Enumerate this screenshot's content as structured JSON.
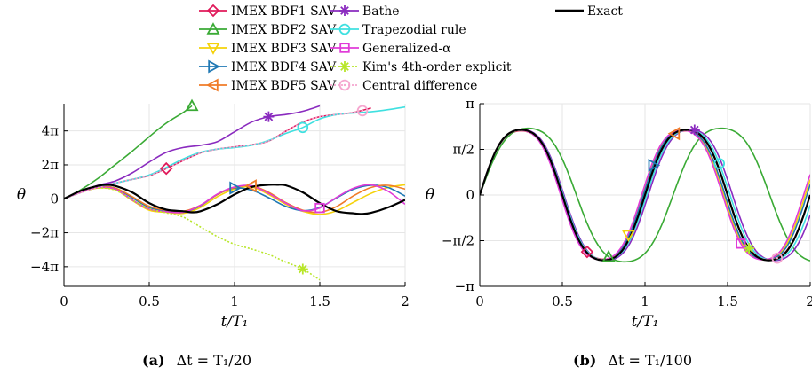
{
  "legend": {
    "items": [
      {
        "label": "IMEX BDF1 SAV",
        "color": "#e0195a",
        "marker": "diamond",
        "dash": "solid"
      },
      {
        "label": "IMEX BDF2 SAV",
        "color": "#3aaa35",
        "marker": "triangle-up",
        "dash": "solid"
      },
      {
        "label": "IMEX BDF3 SAV",
        "color": "#f5d20a",
        "marker": "triangle-down",
        "dash": "solid"
      },
      {
        "label": "IMEX BDF4 SAV",
        "color": "#1f78b4",
        "marker": "triangle-right",
        "dash": "solid"
      },
      {
        "label": "IMEX BDF5 SAV",
        "color": "#f07c28",
        "marker": "triangle-left",
        "dash": "solid"
      },
      {
        "label": "Bathe",
        "color": "#8a2bbf",
        "marker": "asterisk",
        "dash": "solid"
      },
      {
        "label": "Trapezodial rule",
        "color": "#3fe0e0",
        "marker": "circle",
        "dash": "solid"
      },
      {
        "label": "Generalized-α",
        "color": "#e03bd8",
        "marker": "square",
        "dash": "solid"
      },
      {
        "label": "Kim's 4th-order explicit",
        "color": "#b8e62a",
        "marker": "asterisk",
        "dash": "dotted"
      },
      {
        "label": "Central difference",
        "color": "#f5a6cf",
        "marker": "circle-dot",
        "dash": "dotted"
      },
      {
        "label": "Exact",
        "color": "#000000",
        "marker": "none",
        "dash": "solid"
      }
    ]
  },
  "chart_data": [
    {
      "type": "line",
      "caption_label": "(a)",
      "caption_text": "Δt = T₁/20",
      "xlabel": "t/T₁",
      "ylabel": "θ",
      "xlim": [
        0,
        2
      ],
      "ylim": [
        -16.2,
        17.6
      ],
      "xticks": [
        {
          "v": 0,
          "l": "0"
        },
        {
          "v": 0.5,
          "l": "0.5"
        },
        {
          "v": 1,
          "l": "1"
        },
        {
          "v": 1.5,
          "l": "1.5"
        },
        {
          "v": 2,
          "l": "2"
        }
      ],
      "yticks": [
        {
          "v": -12.566,
          "l": "−4π"
        },
        {
          "v": -6.283,
          "l": "−2π"
        },
        {
          "v": 0,
          "l": "0"
        },
        {
          "v": 6.283,
          "l": "2π"
        },
        {
          "v": 12.566,
          "l": "4π"
        }
      ],
      "grid": true,
      "series": [
        {
          "name": "IMEX BDF1 SAV",
          "marker_at": [
            0.6
          ],
          "x": [
            0,
            0.1,
            0.2,
            0.3,
            0.4,
            0.5,
            0.6,
            0.7,
            0.8,
            0.9,
            1.0,
            1.1,
            1.2,
            1.3,
            1.4,
            1.5,
            1.6,
            1.7,
            1.8
          ],
          "y": [
            0,
            1.2,
            2.2,
            2.9,
            3.6,
            4.3,
            5.6,
            7.1,
            8.5,
            9.2,
            9.6,
            10.0,
            10.7,
            12.5,
            14.2,
            15.2,
            15.6,
            16.0,
            16.8
          ]
        },
        {
          "name": "IMEX BDF2 SAV",
          "marker_at": [
            0.75
          ],
          "x": [
            0,
            0.1,
            0.2,
            0.3,
            0.4,
            0.5,
            0.6,
            0.7,
            0.75
          ],
          "y": [
            0,
            1.7,
            3.8,
            6.3,
            8.8,
            11.5,
            14.0,
            16.0,
            17.2
          ]
        },
        {
          "name": "IMEX BDF3 SAV",
          "marker_at": [],
          "x": [
            0,
            0.1,
            0.2,
            0.3,
            0.4,
            0.5,
            0.6,
            0.7,
            0.8,
            0.9,
            1.0,
            1.1,
            1.2,
            1.3,
            1.4,
            1.5,
            1.6,
            1.7,
            1.8,
            1.9,
            2.0
          ],
          "y": [
            0,
            1.2,
            2.0,
            1.7,
            -0.3,
            -2.1,
            -2.5,
            -2.7,
            -1.6,
            0.4,
            1.8,
            2.2,
            0.8,
            -1.0,
            -2.3,
            -2.9,
            -2.2,
            -0.6,
            1.0,
            2.1,
            2.6
          ]
        },
        {
          "name": "IMEX BDF4 SAV",
          "marker_at": [
            1.0
          ],
          "x": [
            0,
            0.1,
            0.2,
            0.3,
            0.4,
            0.5,
            0.6,
            0.7,
            0.8,
            0.9,
            1.0,
            1.1,
            1.2,
            1.3,
            1.4,
            1.5,
            1.6,
            1.7,
            1.8,
            1.9,
            2.0
          ],
          "y": [
            0,
            1.3,
            2.2,
            2.0,
            0.2,
            -1.6,
            -2.3,
            -2.5,
            -1.3,
            0.8,
            2.0,
            1.6,
            0.2,
            -1.4,
            -2.2,
            -1.6,
            0.2,
            1.8,
            2.5,
            2.1,
            0.5
          ]
        },
        {
          "name": "IMEX BDF5 SAV",
          "marker_at": [
            1.1
          ],
          "x": [
            0,
            0.1,
            0.2,
            0.3,
            0.4,
            0.5,
            0.6,
            0.7,
            0.8,
            0.9,
            1.0,
            1.1,
            1.2,
            1.3,
            1.4,
            1.5,
            1.6,
            1.7,
            1.8,
            1.9,
            2.0
          ],
          "y": [
            0,
            1.3,
            2.2,
            2.0,
            0.4,
            -1.4,
            -2.1,
            -2.3,
            -1.2,
            0.8,
            2.1,
            2.4,
            1.2,
            -0.7,
            -2.1,
            -2.5,
            -1.4,
            0.6,
            2.1,
            2.5,
            1.8
          ]
        },
        {
          "name": "Bathe",
          "marker_at": [
            1.2
          ],
          "x": [
            0,
            0.1,
            0.2,
            0.3,
            0.4,
            0.5,
            0.6,
            0.7,
            0.8,
            0.9,
            1.0,
            1.1,
            1.2,
            1.3,
            1.4,
            1.5
          ],
          "y": [
            0,
            1.4,
            2.5,
            3.3,
            4.8,
            6.8,
            8.6,
            9.5,
            9.9,
            10.6,
            12.4,
            14.2,
            15.2,
            15.6,
            16.2,
            17.2
          ]
        },
        {
          "name": "Trapezodial rule",
          "marker_at": [
            1.4
          ],
          "x": [
            0,
            0.1,
            0.2,
            0.3,
            0.4,
            0.5,
            0.6,
            0.7,
            0.8,
            0.9,
            1.0,
            1.1,
            1.2,
            1.3,
            1.4,
            1.5,
            1.6,
            1.7,
            1.8,
            1.9,
            2.0
          ],
          "y": [
            0,
            1.2,
            2.2,
            2.9,
            3.6,
            4.4,
            5.8,
            7.4,
            8.6,
            9.2,
            9.5,
            9.9,
            10.8,
            12.1,
            13.2,
            14.8,
            15.6,
            15.9,
            16.1,
            16.5,
            17.0
          ]
        },
        {
          "name": "Generalized-α",
          "marker_at": [
            1.5
          ],
          "x": [
            0,
            0.1,
            0.2,
            0.3,
            0.4,
            0.5,
            0.6,
            0.7,
            0.8,
            0.9,
            1.0,
            1.1,
            1.2,
            1.3,
            1.4,
            1.5,
            1.6,
            1.7,
            1.8,
            1.9,
            2.0
          ],
          "y": [
            0,
            1.2,
            2.1,
            1.8,
            -0.2,
            -1.9,
            -2.4,
            -2.5,
            -1.2,
            0.9,
            2.2,
            2.4,
            1.0,
            -0.8,
            -2.2,
            -1.7,
            0.3,
            2.0,
            2.6,
            1.4,
            -1.0
          ]
        },
        {
          "name": "Kim's 4th-order explicit",
          "marker_at": [
            1.4
          ],
          "x": [
            0,
            0.1,
            0.2,
            0.3,
            0.4,
            0.5,
            0.6,
            0.7,
            0.8,
            0.9,
            1.0,
            1.1,
            1.2,
            1.3,
            1.4,
            1.5
          ],
          "y": [
            0,
            1.2,
            2.0,
            1.6,
            -0.2,
            -1.8,
            -2.6,
            -3.4,
            -5.2,
            -7.0,
            -8.4,
            -9.3,
            -10.3,
            -11.7,
            -13.0,
            -15.0
          ]
        },
        {
          "name": "Central difference",
          "marker_at": [
            1.75
          ],
          "x": [
            0,
            0.1,
            0.2,
            0.3,
            0.4,
            0.5,
            0.6,
            0.7,
            0.8,
            0.9,
            1.0,
            1.1,
            1.2,
            1.3,
            1.4,
            1.5,
            1.6,
            1.7,
            1.75
          ],
          "y": [
            0,
            1.2,
            2.2,
            2.9,
            3.6,
            4.3,
            5.6,
            7.1,
            8.5,
            9.2,
            9.6,
            10.0,
            10.7,
            12.5,
            14.2,
            15.2,
            15.6,
            16.0,
            16.3
          ]
        },
        {
          "name": "Exact",
          "marker_at": [],
          "x": [
            0,
            0.1,
            0.2,
            0.25,
            0.3,
            0.4,
            0.5,
            0.6,
            0.7,
            0.75,
            0.8,
            0.9,
            1.0,
            1.1,
            1.2,
            1.25,
            1.3,
            1.4,
            1.5,
            1.6,
            1.7,
            1.75,
            1.8,
            1.9,
            2.0
          ],
          "y": [
            0,
            1.5,
            2.4,
            2.6,
            2.4,
            1.2,
            -0.8,
            -2.0,
            -2.3,
            -2.5,
            -2.3,
            -1.0,
            0.8,
            2.2,
            2.6,
            2.6,
            2.5,
            1.2,
            -0.8,
            -2.3,
            -2.7,
            -2.8,
            -2.6,
            -1.6,
            -0.2
          ]
        }
      ]
    },
    {
      "type": "line",
      "caption_label": "(b)",
      "caption_text": "Δt = T₁/100",
      "xlabel": "t/T₁",
      "ylabel": "θ",
      "xlim": [
        0,
        2
      ],
      "ylim": [
        -3.1416,
        3.1416
      ],
      "xticks": [
        {
          "v": 0,
          "l": "0"
        },
        {
          "v": 0.5,
          "l": "0.5"
        },
        {
          "v": 1,
          "l": "1"
        },
        {
          "v": 1.5,
          "l": "1.5"
        },
        {
          "v": 2,
          "l": "2"
        }
      ],
      "yticks": [
        {
          "v": -3.1416,
          "l": "−π"
        },
        {
          "v": -1.5708,
          "l": "−π/2"
        },
        {
          "v": 0,
          "l": "0"
        },
        {
          "v": 1.5708,
          "l": "π/2"
        },
        {
          "v": 3.1416,
          "l": "π"
        }
      ],
      "grid": true,
      "series": [
        {
          "name": "IMEX BDF1 SAV",
          "marker_at": [
            0.65
          ],
          "amp": 2.51,
          "period": 1.0,
          "phase": 0.0
        },
        {
          "name": "IMEX BDF2 SAV",
          "marker_at": [
            0.78
          ],
          "amp": 2.61,
          "period": 1.17,
          "phase": 0.0
        },
        {
          "name": "IMEX BDF3 SAV",
          "marker_at": [
            0.9
          ],
          "amp": 2.53,
          "period": 0.985,
          "phase": 0.0
        },
        {
          "name": "IMEX BDF4 SAV",
          "marker_at": [
            1.05
          ],
          "amp": 2.53,
          "period": 0.99,
          "phase": 0.0
        },
        {
          "name": "IMEX BDF5 SAV",
          "marker_at": [
            1.18
          ],
          "amp": 2.53,
          "period": 1.0,
          "phase": 0.0
        },
        {
          "name": "Bathe",
          "marker_at": [
            1.3
          ],
          "amp": 2.56,
          "period": 1.02,
          "phase": 0.0
        },
        {
          "name": "Trapezodial rule",
          "marker_at": [
            1.45
          ],
          "amp": 2.54,
          "period": 1.01,
          "phase": 0.0
        },
        {
          "name": "Generalized-α",
          "marker_at": [
            1.58
          ],
          "amp": 2.53,
          "period": 0.98,
          "phase": 0.0
        },
        {
          "name": "Kim's 4th-order explicit",
          "marker_at": [
            1.63
          ],
          "amp": 2.53,
          "period": 1.0,
          "phase": 0.0
        },
        {
          "name": "Central difference",
          "marker_at": [
            1.8
          ],
          "amp": 2.53,
          "period": 1.0,
          "phase": 0.0
        },
        {
          "name": "Exact",
          "marker_at": [],
          "amp": 2.55,
          "period": 1.0,
          "phase": 0.0
        }
      ]
    }
  ]
}
